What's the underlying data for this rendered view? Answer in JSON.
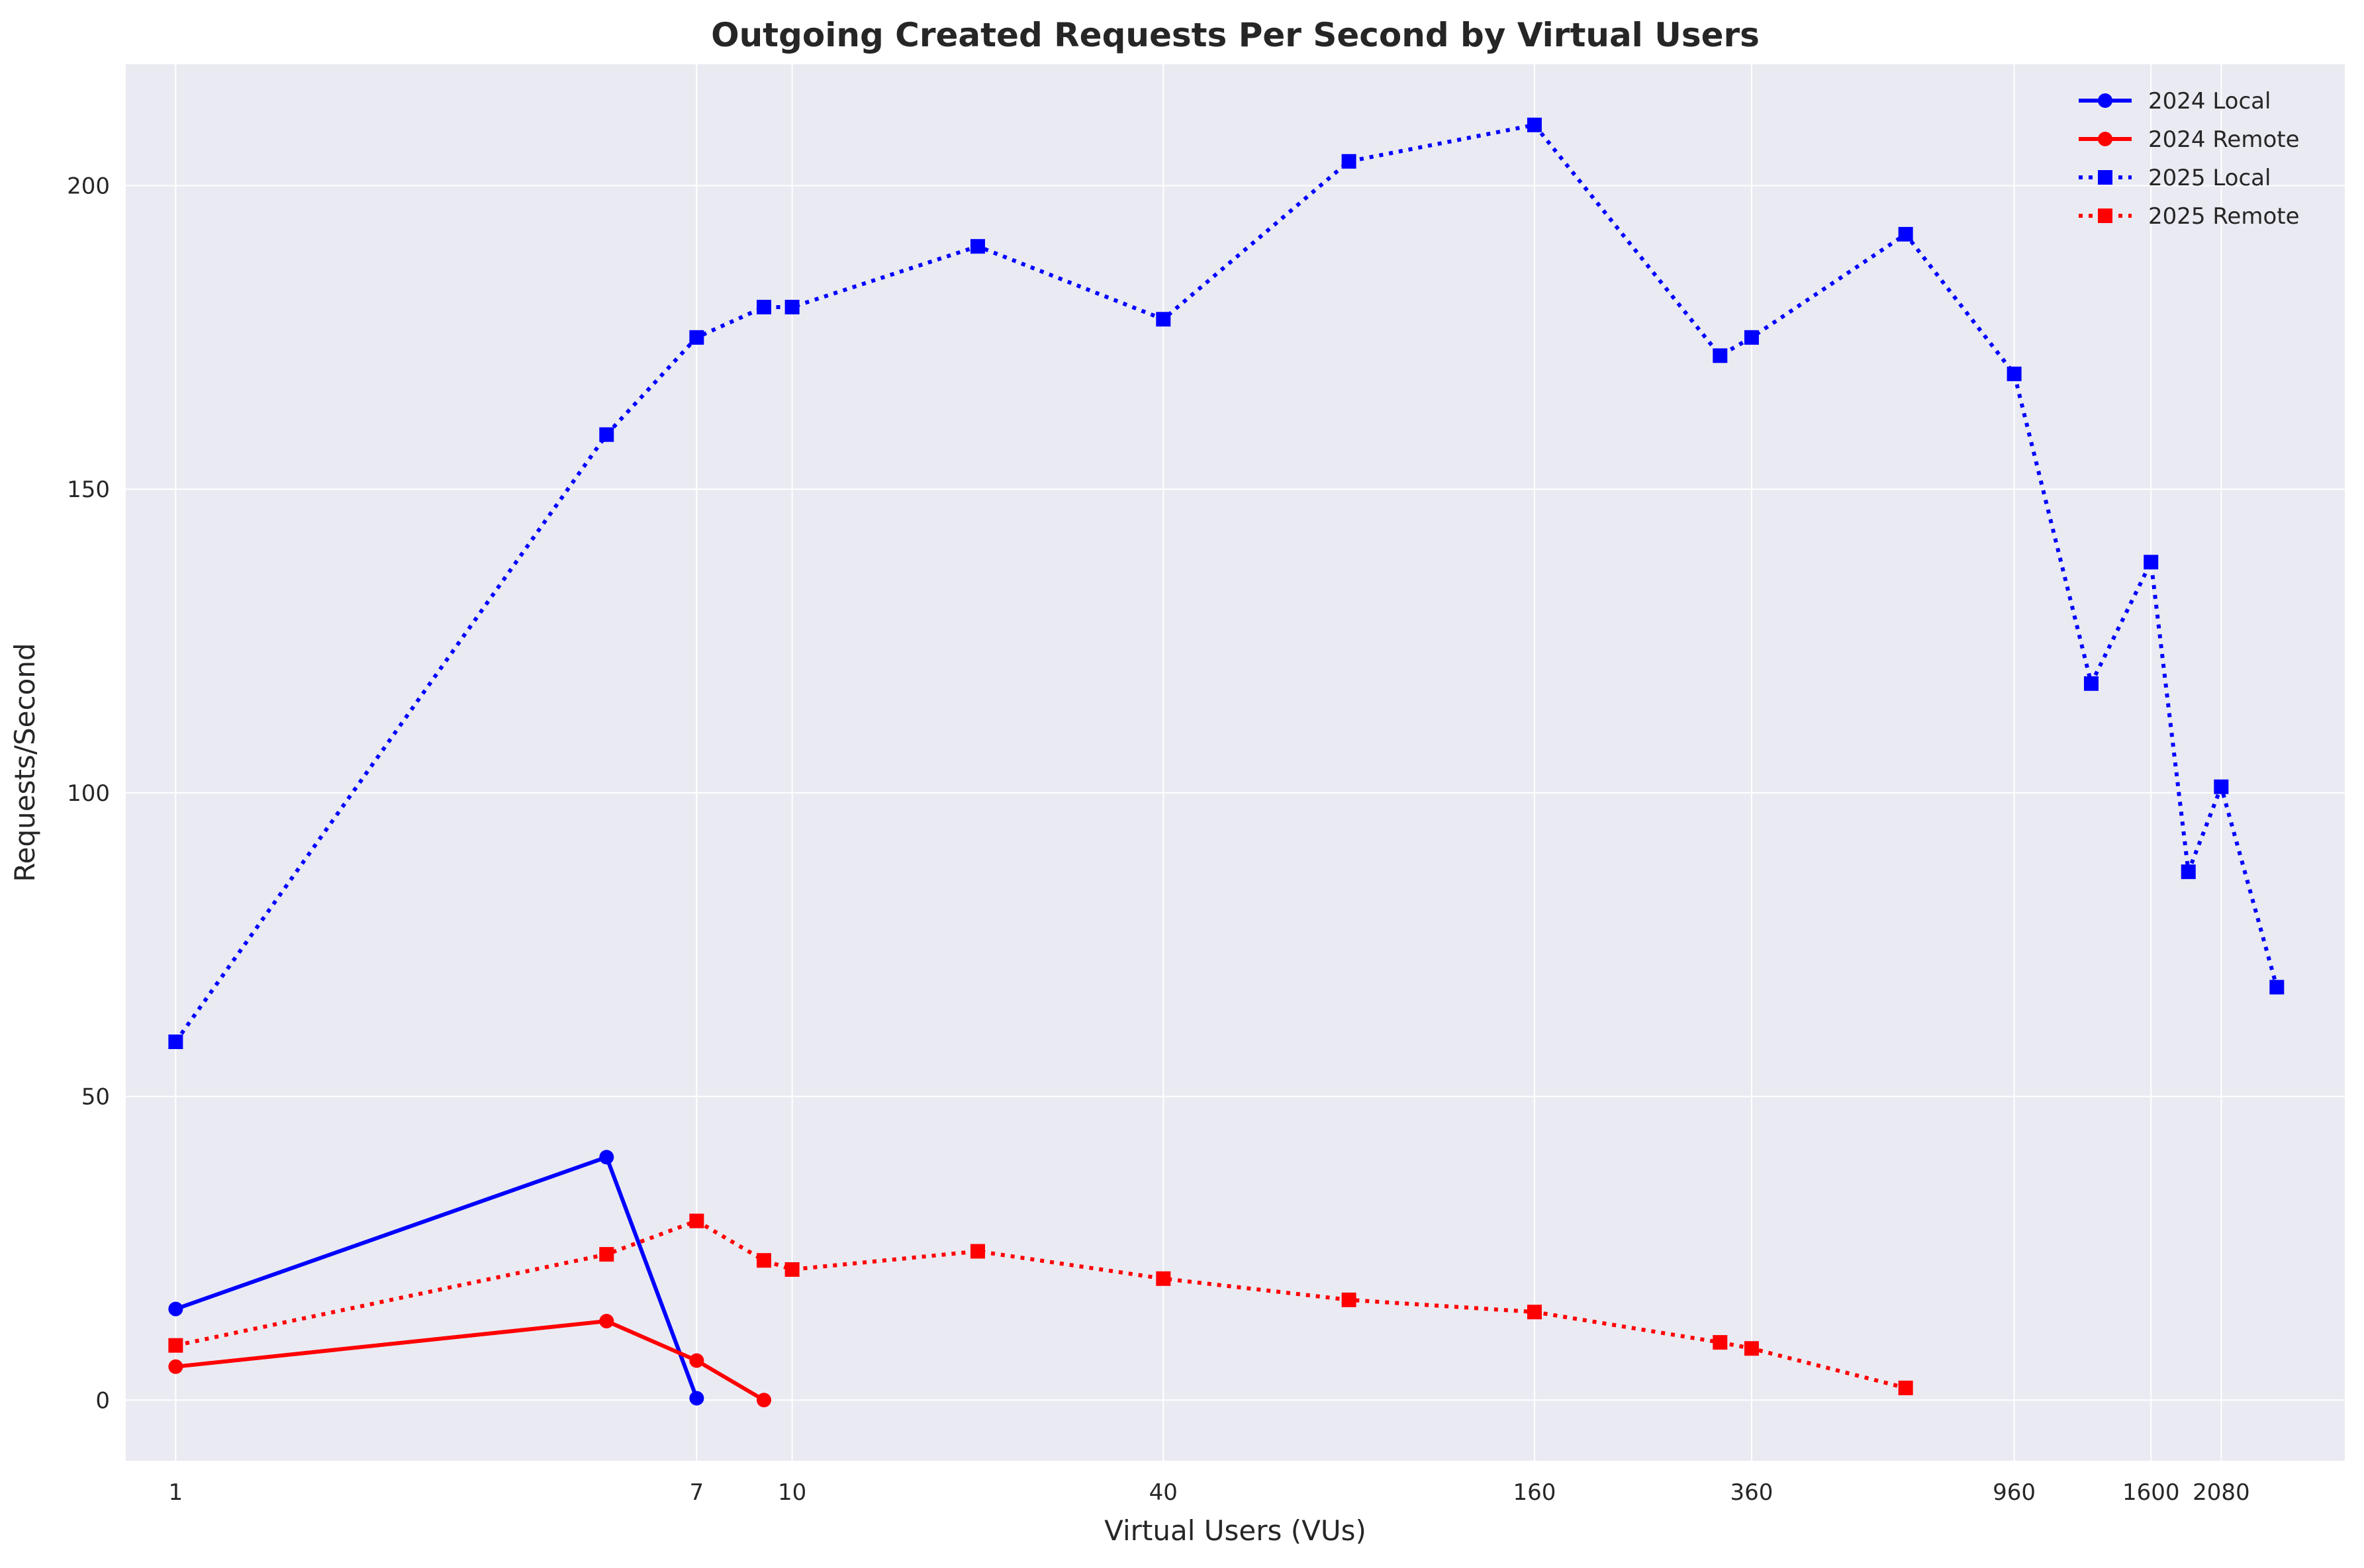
{
  "chart_data": {
    "type": "line",
    "title": "Outgoing Created Requests Per Second by Virtual Users",
    "xlabel": "Virtual Users (VUs)",
    "ylabel": "Requests/Second",
    "xscale": "log",
    "xlim": [
      0.83,
      3300
    ],
    "ylim": [
      -10,
      220
    ],
    "x_ticks": [
      1,
      7,
      10,
      40,
      160,
      360,
      960,
      1600,
      2080
    ],
    "y_ticks": [
      0,
      50,
      100,
      150,
      200
    ],
    "grid": true,
    "legend_position": "top-right",
    "series": [
      {
        "name": "2024 Local",
        "color": "#0000ff",
        "line_style": "solid",
        "marker": "circle",
        "points": [
          [
            1,
            15
          ],
          [
            5,
            40
          ],
          [
            7,
            0.3
          ]
        ]
      },
      {
        "name": "2024 Remote",
        "color": "#ff0000",
        "line_style": "solid",
        "marker": "circle",
        "points": [
          [
            1,
            5.5
          ],
          [
            5,
            13
          ],
          [
            7,
            6.5
          ],
          [
            9,
            0
          ]
        ]
      },
      {
        "name": "2025 Local",
        "color": "#0000ff",
        "line_style": "dotted",
        "marker": "square",
        "points": [
          [
            1,
            59
          ],
          [
            5,
            159
          ],
          [
            7,
            175
          ],
          [
            9,
            180
          ],
          [
            10,
            180
          ],
          [
            20,
            190
          ],
          [
            40,
            178
          ],
          [
            80,
            204
          ],
          [
            160,
            210
          ],
          [
            320,
            172
          ],
          [
            360,
            175
          ],
          [
            640,
            192
          ],
          [
            960,
            169
          ],
          [
            1280,
            118
          ],
          [
            1600,
            138
          ],
          [
            1840,
            87
          ],
          [
            2080,
            101
          ],
          [
            2560,
            68
          ]
        ]
      },
      {
        "name": "2025 Remote",
        "color": "#ff0000",
        "line_style": "dotted",
        "marker": "square",
        "points": [
          [
            1,
            9
          ],
          [
            5,
            24
          ],
          [
            7,
            29.5
          ],
          [
            9,
            23
          ],
          [
            10,
            21.5
          ],
          [
            20,
            24.5
          ],
          [
            40,
            20
          ],
          [
            80,
            16.5
          ],
          [
            160,
            14.5
          ],
          [
            320,
            9.5
          ],
          [
            360,
            8.5
          ],
          [
            640,
            2
          ]
        ]
      }
    ]
  }
}
